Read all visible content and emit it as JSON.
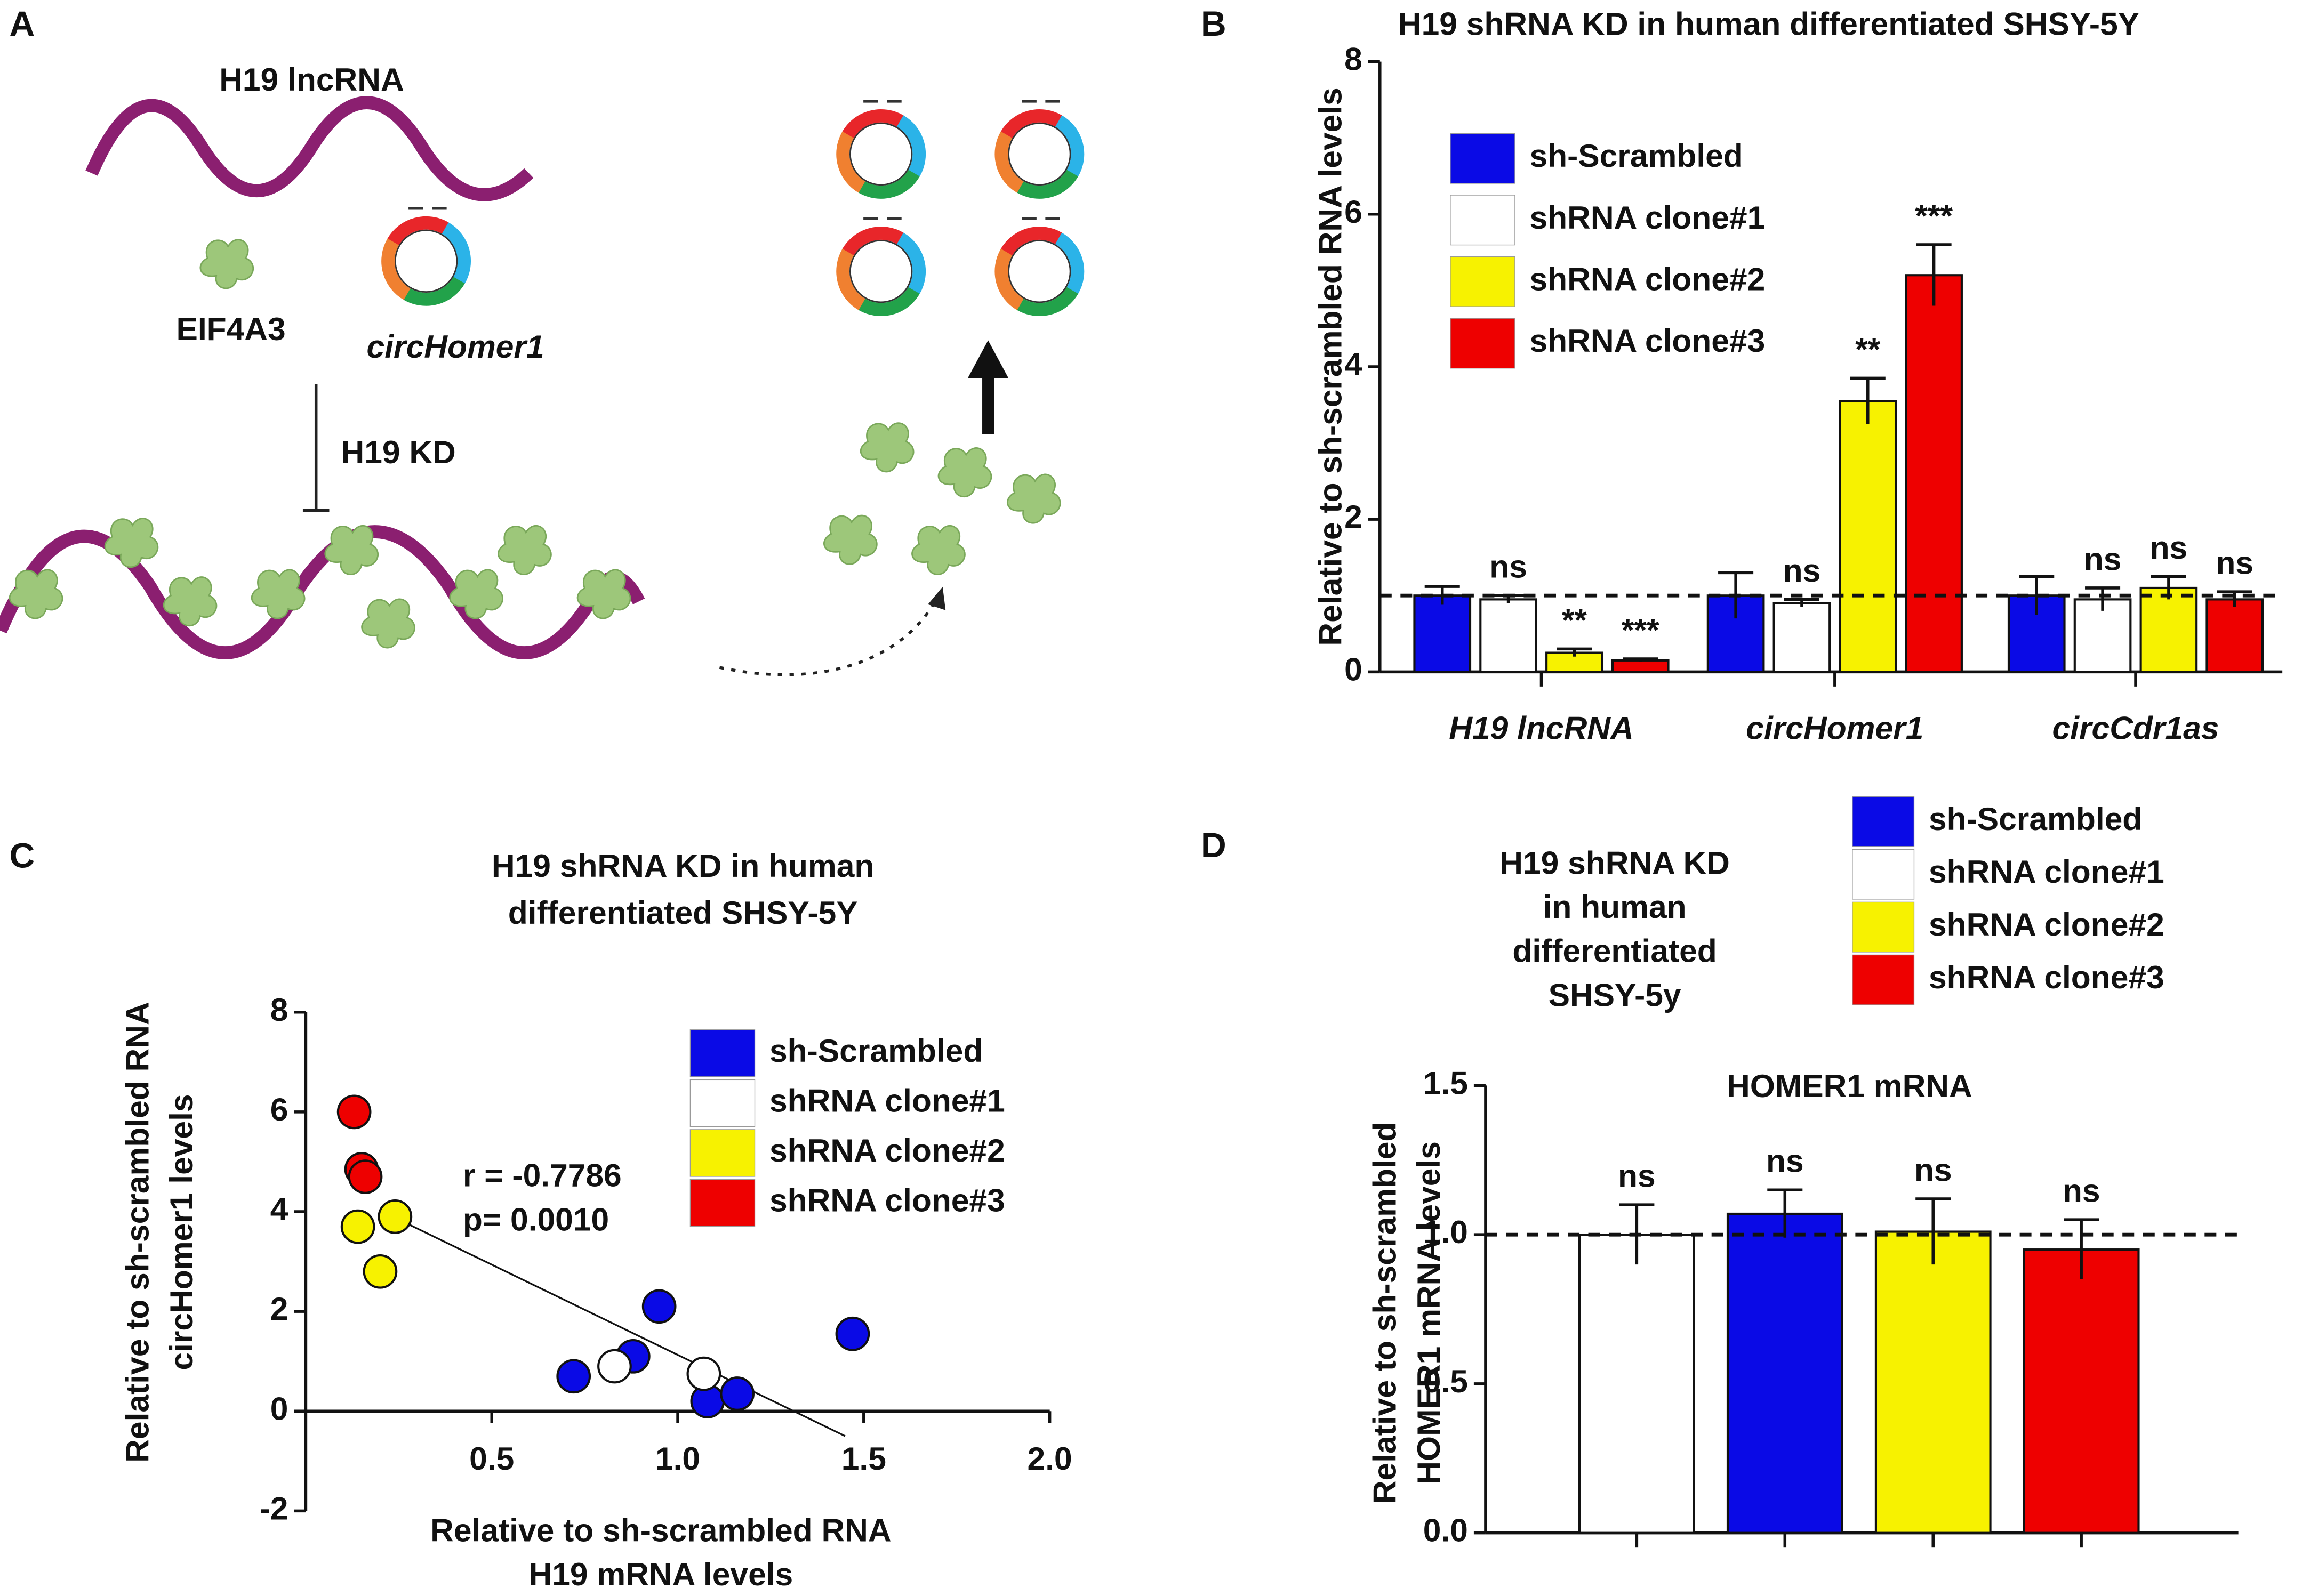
{
  "panel_labels": [
    "A",
    "B",
    "C",
    "D"
  ],
  "diagram": {
    "lncrna_label": "H19 lncRNA",
    "protein_label": "EIF4A3",
    "circ_label": "circHomer1",
    "kd_label": "H19 KD"
  },
  "chart_data": [
    {
      "type": "bar",
      "title": "H19 shRNA KD in human differentiated  SHSY-5Y",
      "ylabel": "Relative to sh-scrambled RNA levels",
      "categories": [
        "H19 lncRNA",
        "circHomer1",
        "circCdr1as"
      ],
      "series": [
        {
          "name": "sh-Scrambled",
          "color": "#0a0ae6",
          "values": [
            1.0,
            1.0,
            1.0
          ],
          "errors": [
            0.12,
            0.3,
            0.25
          ],
          "labels": [
            null,
            null,
            null
          ]
        },
        {
          "name": "shRNA clone#1",
          "color": "#ffffff",
          "values": [
            0.95,
            0.9,
            0.95
          ],
          "errors": [
            0.05,
            0.05,
            0.15
          ],
          "labels": [
            "ns",
            "ns",
            "ns"
          ]
        },
        {
          "name": "shRNA clone#2",
          "color": "#f7f200",
          "values": [
            0.25,
            3.55,
            1.1
          ],
          "errors": [
            0.05,
            0.3,
            0.15
          ],
          "labels": [
            "**",
            "**",
            "ns"
          ]
        },
        {
          "name": "shRNA clone#3",
          "color": "#ee0000",
          "values": [
            0.15,
            5.2,
            0.95
          ],
          "errors": [
            0.02,
            0.4,
            0.1
          ],
          "labels": [
            "***",
            "***",
            "ns"
          ]
        }
      ],
      "ylim": [
        0,
        8
      ],
      "yticks": [
        0,
        2,
        4,
        6,
        8
      ],
      "reference_line": 1
    },
    {
      "type": "scatter",
      "title": [
        "H19 shRNA KD in human",
        "differentiated  SHSY-5Y"
      ],
      "xlabel": [
        "Relative to sh-scrambled RNA",
        "H19 mRNA levels"
      ],
      "ylabel": [
        "Relative to sh-scrambled RNA",
        "circHomer1 levels"
      ],
      "series": [
        {
          "name": "sh-Scrambled",
          "color": "#0a0ae6",
          "x": [
            0.72,
            0.88,
            0.95,
            1.08,
            1.16,
            1.47
          ],
          "y": [
            0.7,
            1.1,
            2.1,
            0.2,
            0.35,
            1.55
          ]
        },
        {
          "name": "shRNA clone#1",
          "color": "#ffffff",
          "x": [
            0.83,
            1.07
          ],
          "y": [
            0.9,
            0.75
          ]
        },
        {
          "name": "shRNA clone#2",
          "color": "#f7f200",
          "x": [
            0.14,
            0.24,
            0.2
          ],
          "y": [
            3.7,
            3.9,
            2.8
          ]
        },
        {
          "name": "shRNA clone#3",
          "color": "#ee0000",
          "x": [
            0.13,
            0.15,
            0.16
          ],
          "y": [
            6.0,
            4.85,
            4.7
          ]
        }
      ],
      "fit_line": {
        "x": [
          0.22,
          1.45
        ],
        "y": [
          3.95,
          -0.5
        ]
      },
      "annotations": [
        "r = -0.7786",
        "p= 0.0010"
      ],
      "xlim": [
        0,
        2.0
      ],
      "xticks": [
        0.5,
        {
          "value": 1.0,
          "label": "1.0"
        },
        1.5,
        {
          "value": 2.0,
          "label": "2.0"
        }
      ],
      "ylim": [
        -2,
        8
      ],
      "yticks": [
        -2,
        0,
        2,
        4,
        6,
        8
      ]
    },
    {
      "type": "bar",
      "title": [
        "H19 shRNA KD",
        "in human",
        "differentiated",
        "SHSY-5y"
      ],
      "subtitle": "HOMER1 mRNA",
      "ylabel": [
        "Relative to sh-scrambled",
        "HOMER1 mRNA levels"
      ],
      "series": [
        {
          "name": "sh-Scrambled",
          "color": "#ffffff",
          "values": [
            1.0
          ],
          "errors": [
            0.1
          ],
          "labels": [
            "ns"
          ]
        },
        {
          "name": "shRNA clone#1",
          "color": "#0a0ae6",
          "values": [
            1.07
          ],
          "errors": [
            0.08
          ],
          "labels": [
            "ns"
          ]
        },
        {
          "name": "shRNA clone#2",
          "color": "#f7f200",
          "values": [
            1.01
          ],
          "errors": [
            0.11
          ],
          "labels": [
            "ns"
          ]
        },
        {
          "name": "shRNA clone#3",
          "color": "#ee0000",
          "values": [
            0.95
          ],
          "errors": [
            0.1
          ],
          "labels": [
            "ns"
          ]
        }
      ],
      "legend_colors": [
        "#0a0ae6",
        "#ffffff",
        "#f7f200",
        "#ee0000"
      ],
      "ylim": [
        0,
        1.5
      ],
      "yticks": [
        {
          "value": 0,
          "label": "0.0"
        },
        {
          "value": 0.5,
          "label": "0.5"
        },
        {
          "value": 1.0,
          "label": "1.0"
        },
        {
          "value": 1.5,
          "label": "1.5"
        }
      ],
      "reference_line": 1
    }
  ]
}
